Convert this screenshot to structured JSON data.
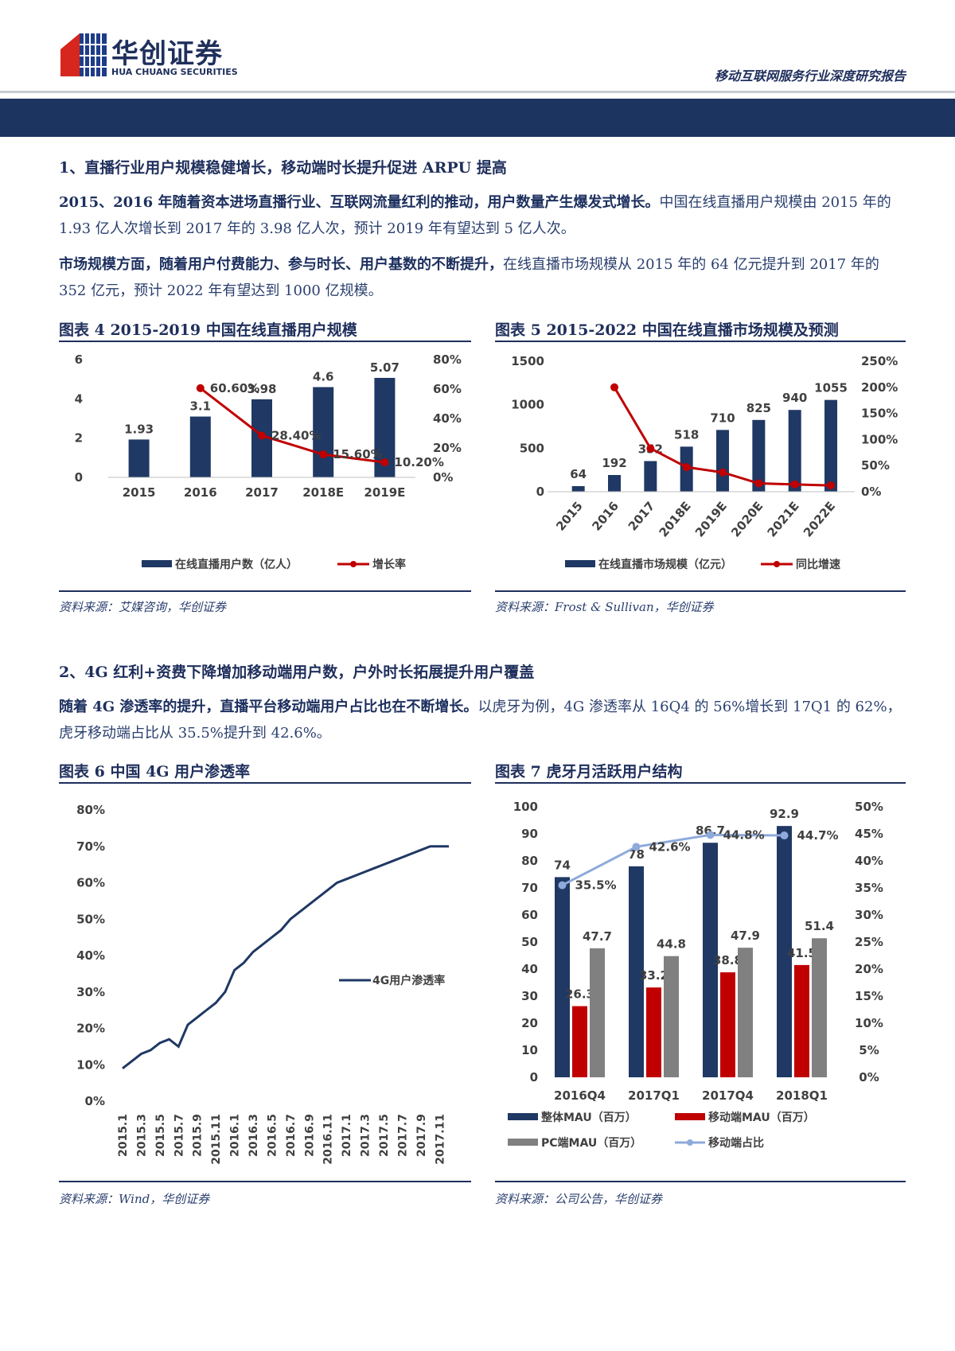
{
  "header": {
    "logo_cn": "华创证券",
    "logo_en": "HUA CHUANG SECURITIES",
    "report_title": "移动互联网服务行业深度研究报告"
  },
  "section1": {
    "heading": "1、直播行业用户规模稳健增长，移动端时长提升促进 ARPU 提高",
    "p1_bold": "2015、2016 年随着资本进场直播行业、互联网流量红利的推动，用户数量产生爆发式增长。",
    "p1_rest": "中国在线直播用户规模由 2015 年的 1.93 亿人次增长到 2017 年的 3.98 亿人次，预计 2019 年有望达到 5 亿人次。",
    "p2_bold": "市场规模方面，随着用户付费能力、参与时长、用户基数的不断提升，",
    "p2_rest": "在线直播市场规模从 2015 年的 64 亿元提升到 2017 年的 352 亿元，预计 2022 年有望达到 1000 亿规模。"
  },
  "section2": {
    "heading": "2、4G 红利+资费下降增加移动端用户数，户外时长拓展提升用户覆盖",
    "p1_bold": "随着 4G 渗透率的提升，直播平台移动端用户占比也在不断增长。",
    "p1_rest": "以虎牙为例，4G 渗透率从 16Q4 的 56%增长到 17Q1 的 62%，虎牙移动端占比从 35.5%提升到 42.6%。"
  },
  "fig4": {
    "title": "图表 4    2015-2019 中国在线直播用户规模",
    "source": "资料来源：艾媒咨询，华创证券"
  },
  "fig5": {
    "title": "图表 5    2015-2022 中国在线直播市场规模及预测",
    "source": "资料来源：Frost & Sullivan，华创证券"
  },
  "fig6": {
    "title": "图表 6    中国 4G 用户渗透率",
    "source": "资料来源：Wind，华创证券"
  },
  "fig7": {
    "title": "图表 7    虎牙月活跃用户结构",
    "source": "资料来源：公司公告，华创证券"
  },
  "chart_data": [
    {
      "type": "bar",
      "categories": [
        "2015",
        "2016",
        "2017",
        "2018E",
        "2019E"
      ],
      "series": [
        {
          "name": "在线直播用户数（亿人）",
          "values": [
            1.93,
            3.1,
            3.98,
            4.6,
            5.07
          ],
          "labels": [
            "1.93",
            "3.1",
            "3.98",
            "4.6",
            "5.07"
          ],
          "axis": "left",
          "color": "#1f3864"
        },
        {
          "name": "增长率",
          "kind": "line",
          "values": [
            null,
            60.6,
            28.4,
            15.6,
            10.2
          ],
          "labels": [
            "",
            "60.60%",
            "28.40%",
            "15.60%",
            "10.20%"
          ],
          "axis": "right",
          "color": "#c00000"
        }
      ],
      "yticks_left": [
        "0",
        "2",
        "4",
        "6"
      ],
      "ylim_left": [
        0,
        6
      ],
      "yticks_right": [
        "0%",
        "20%",
        "40%",
        "60%",
        "80%"
      ],
      "ylim_right": [
        0,
        80
      ],
      "legend": "bottom"
    },
    {
      "type": "bar",
      "categories": [
        "2015",
        "2016",
        "2017",
        "2018E",
        "2019E",
        "2020E",
        "2021E",
        "2022E"
      ],
      "series": [
        {
          "name": "在线直播市场规模（亿元）",
          "values": [
            64,
            192,
            352,
            518,
            710,
            825,
            940,
            1055
          ],
          "labels": [
            "64",
            "192",
            "352",
            "518",
            "710",
            "825",
            "940",
            "1055"
          ],
          "axis": "left",
          "color": "#1f3864"
        },
        {
          "name": "同比增速",
          "kind": "line",
          "values": [
            null,
            200,
            83,
            47,
            37,
            16,
            14,
            12
          ],
          "axis": "right",
          "color": "#c00000"
        }
      ],
      "yticks_left": [
        "0",
        "500",
        "1000",
        "1500"
      ],
      "ylim_left": [
        0,
        1500
      ],
      "yticks_right": [
        "0%",
        "50%",
        "100%",
        "150%",
        "200%",
        "250%"
      ],
      "ylim_right": [
        0,
        250
      ],
      "legend": "bottom"
    },
    {
      "type": "line",
      "x": [
        "2015.1",
        "2015.2",
        "2015.3",
        "2015.4",
        "2015.5",
        "2015.6",
        "2015.7",
        "2015.8",
        "2015.9",
        "2015.10",
        "2015.11",
        "2015.12",
        "2016.1",
        "2016.2",
        "2016.3",
        "2016.4",
        "2016.5",
        "2016.6",
        "2016.7",
        "2016.8",
        "2016.9",
        "2016.10",
        "2016.11",
        "2016.12",
        "2017.1",
        "2017.2",
        "2017.3",
        "2017.4",
        "2017.5",
        "2017.6",
        "2017.7",
        "2017.8",
        "2017.9",
        "2017.10",
        "2017.11",
        "2017.12"
      ],
      "xticks": [
        "2015.1",
        "2015.3",
        "2015.5",
        "2015.7",
        "2015.9",
        "2015.11",
        "2016.1",
        "2016.3",
        "2016.5",
        "2016.7",
        "2016.9",
        "2016.11",
        "2017.1",
        "2017.3",
        "2017.5",
        "2017.7",
        "2017.9",
        "2017.11"
      ],
      "series": [
        {
          "name": "4G用户渗透率",
          "values": [
            9,
            11,
            13,
            14,
            16,
            17,
            15,
            21,
            23,
            25,
            27,
            30,
            36,
            38,
            41,
            43,
            45,
            47,
            50,
            52,
            54,
            56,
            58,
            60,
            61,
            62,
            63,
            64,
            65,
            66,
            67,
            68,
            69,
            70,
            70,
            70
          ],
          "color": "#1f3864"
        }
      ],
      "yticks": [
        "0%",
        "10%",
        "20%",
        "30%",
        "40%",
        "50%",
        "60%",
        "70%",
        "80%"
      ],
      "ylim": [
        0,
        80
      ],
      "legend": "right"
    },
    {
      "type": "bar",
      "categories": [
        "2016Q4",
        "2017Q1",
        "2017Q4",
        "2018Q1"
      ],
      "series": [
        {
          "name": "整体MAU（百万）",
          "values": [
            74,
            78,
            86.7,
            92.9
          ],
          "labels": [
            "74",
            "78",
            "86.7",
            "92.9"
          ],
          "axis": "left",
          "color": "#1f3864"
        },
        {
          "name": "移动端MAU（百万）",
          "values": [
            26.3,
            33.2,
            38.8,
            41.5
          ],
          "labels": [
            "26.3",
            "33.2",
            "38.8",
            "41.5"
          ],
          "axis": "left",
          "color": "#c00000"
        },
        {
          "name": "PC端MAU（百万）",
          "values": [
            47.7,
            44.8,
            47.9,
            51.4
          ],
          "labels": [
            "47.7",
            "44.8",
            "47.9",
            "51.4"
          ],
          "axis": "left",
          "color": "#808080"
        },
        {
          "name": "移动端占比",
          "kind": "line",
          "values": [
            35.5,
            42.6,
            44.8,
            44.7
          ],
          "labels": [
            "35.5%",
            "42.6%",
            "44.8%",
            "44.7%"
          ],
          "axis": "right",
          "color": "#8eaadb"
        }
      ],
      "yticks_left": [
        "0",
        "10",
        "20",
        "30",
        "40",
        "50",
        "60",
        "70",
        "80",
        "90",
        "100"
      ],
      "ylim_left": [
        0,
        100
      ],
      "yticks_right": [
        "0%",
        "5%",
        "10%",
        "15%",
        "20%",
        "25%",
        "30%",
        "35%",
        "40%",
        "45%",
        "50%"
      ],
      "ylim_right": [
        0,
        50
      ],
      "legend": "bottom"
    }
  ]
}
